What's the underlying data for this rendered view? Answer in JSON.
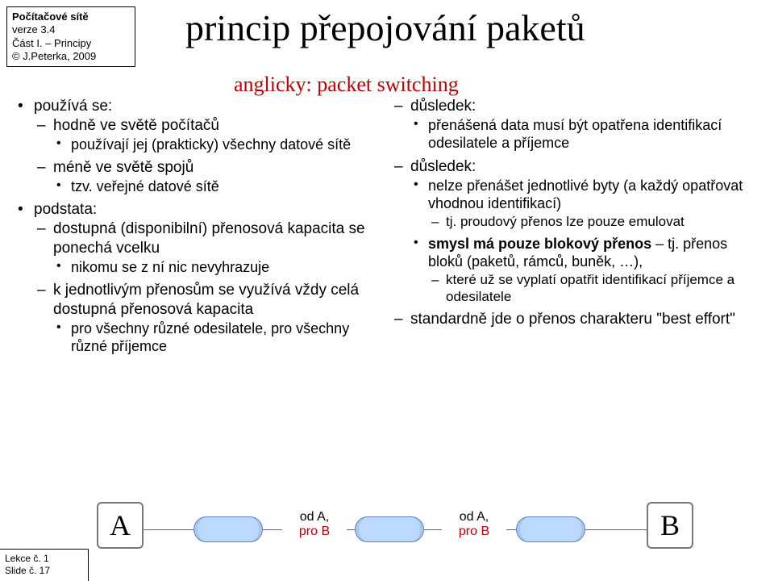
{
  "header": {
    "line1": "Počítačové sítě",
    "line2": "verze 3.4",
    "line3": "Část I. – Principy",
    "line4": "© J.Peterka, 2009"
  },
  "title": "princip přepojování paketů",
  "subtitle": "anglicky: packet switching",
  "left": {
    "i1": "používá se:",
    "i1a": "hodně ve světě počítačů",
    "i1a1": "používají jej (prakticky) všechny datové sítě",
    "i1b": "méně ve světě spojů",
    "i1b1": "tzv. veřejné datové sítě",
    "i2": "podstata:",
    "i2a": "dostupná (disponibilní) přenosová kapacita se ponechá vcelku",
    "i2a1": "nikomu se z ní nic nevyhrazuje",
    "i2b": "k jednotlivým přenosům se využívá vždy celá dostupná přenosová kapacita",
    "i2b1": "pro všechny různé odesilatele, pro všechny různé příjemce"
  },
  "right": {
    "i1": "důsledek:",
    "i1a": "přenášená data musí být opatřena identifikací odesilatele a příjemce",
    "i2": "důsledek:",
    "i2a": "nelze přenášet jednotlivé byty (a každý opatřovat vhodnou identifikací)",
    "i2a1": "tj. proudový přenos lze pouze emulovat",
    "i2b_bold": "smysl má pouze blokový přenos",
    "i2b_rest": " – tj. přenos bloků (paketů, rámců, buněk, …),",
    "i2b1": "které už se vyplatí opatřit identifikací příjemce a odesilatele",
    "i3": "standardně jde o přenos charakteru \"best effort\""
  },
  "footer": {
    "line1": "Lekce č. 1",
    "line2": "Slide č. 17"
  },
  "diagram": {
    "a": "A",
    "b": "B",
    "pkt_from": "od A,",
    "pkt_to": "pro B"
  }
}
